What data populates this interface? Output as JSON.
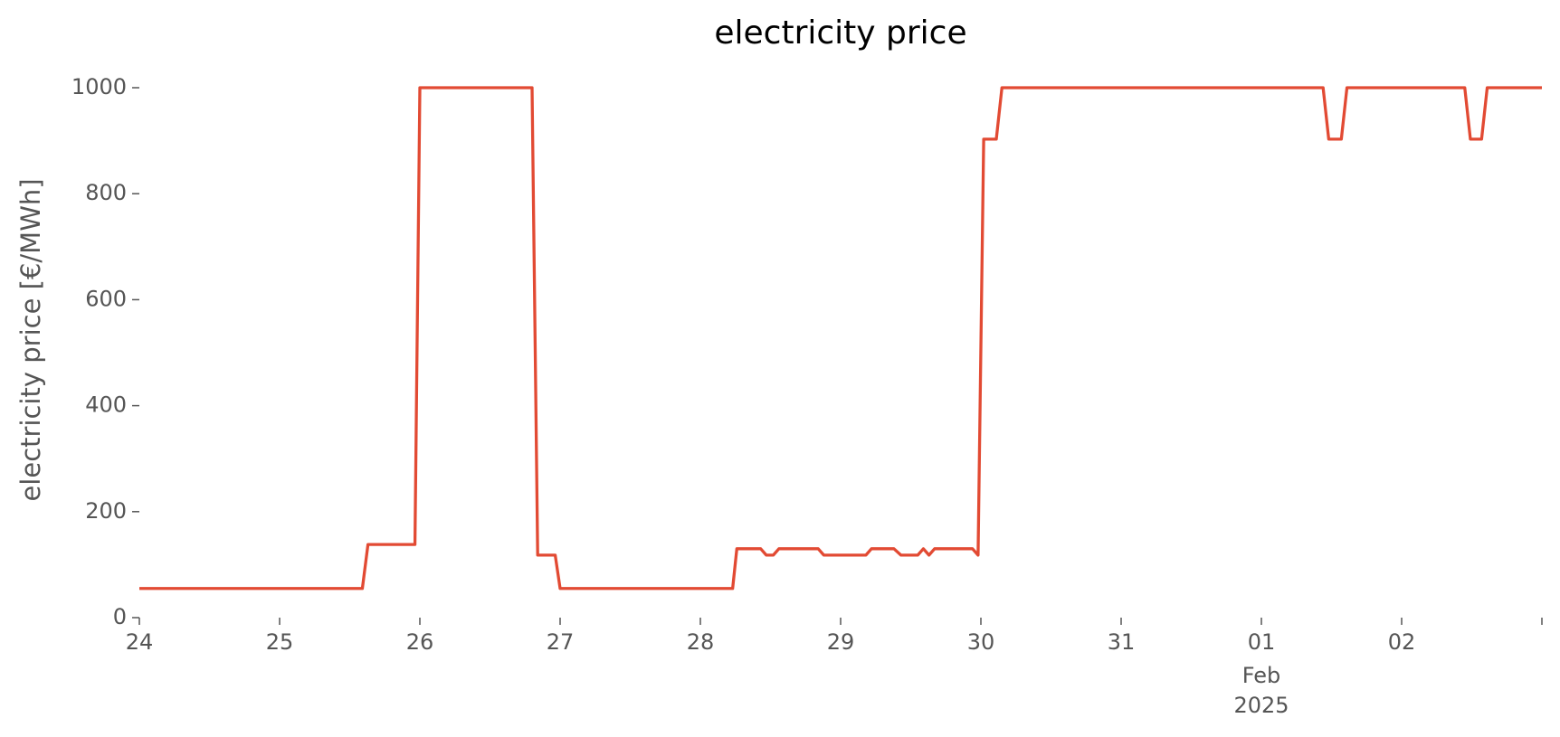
{
  "chart_data": {
    "type": "line",
    "title": "electricity price",
    "y_label": "electricity price [€/MWh]",
    "x": [
      0,
      1.59,
      1.63,
      1.965,
      2.0,
      2.8,
      2.84,
      2.965,
      3.0,
      4.23,
      4.26,
      4.43,
      4.47,
      4.52,
      4.56,
      4.84,
      4.88,
      5.18,
      5.22,
      5.38,
      5.43,
      5.55,
      5.59,
      5.63,
      5.67,
      5.94,
      5.98,
      6.02,
      6.11,
      6.15,
      8.44,
      8.48,
      8.57,
      8.61,
      9.45,
      9.49,
      9.57,
      9.61,
      10
    ],
    "series": [
      {
        "color": "#e24a33",
        "values": [
          55,
          55,
          138,
          138,
          1000,
          1000,
          118,
          118,
          55,
          55,
          130,
          130,
          118,
          118,
          130,
          130,
          118,
          118,
          130,
          130,
          118,
          118,
          130,
          118,
          130,
          130,
          118,
          903,
          903,
          1000,
          1000,
          903,
          903,
          1000,
          1000,
          903,
          903,
          1000,
          1000
        ]
      }
    ],
    "xlim": [
      0,
      10
    ],
    "xticks": [
      {
        "value": 0,
        "label": "24"
      },
      {
        "value": 1,
        "label": "25"
      },
      {
        "value": 2,
        "label": "26"
      },
      {
        "value": 3,
        "label": "27"
      },
      {
        "value": 4,
        "label": "28"
      },
      {
        "value": 5,
        "label": "29"
      },
      {
        "value": 6,
        "label": "30"
      },
      {
        "value": 7,
        "label": "31"
      },
      {
        "value": 8,
        "label": "01"
      },
      {
        "value": 9,
        "label": "02"
      }
    ],
    "xticks_unlabeled": [
      10
    ],
    "xtick_sublabels": {
      "value": 8,
      "lines": [
        "Feb",
        "2025"
      ]
    },
    "ylim": [
      0,
      1000
    ],
    "yticks": [
      0,
      200,
      400,
      600,
      800,
      1000
    ],
    "grid": false
  }
}
